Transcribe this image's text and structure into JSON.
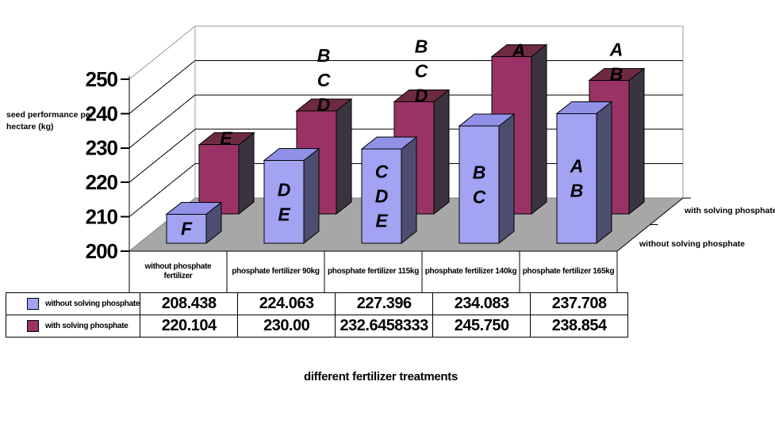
{
  "chart": {
    "y_axis_title_line1": "seed performance per",
    "y_axis_title_line2": "hectare (kg)",
    "x_axis_title": "different fertilizer treatments",
    "series_axis": {
      "back_label": "with solving phosphate",
      "front_label": "without solving phosphate"
    }
  },
  "chart_data": {
    "type": "bar",
    "projection": "3d-column",
    "title": "",
    "xlabel": "different fertilizer treatments",
    "ylabel": "seed performance per hectare (kg)",
    "ylim": [
      200,
      250
    ],
    "y_ticks": [
      200,
      210,
      220,
      230,
      240,
      250
    ],
    "grid": true,
    "legend_position": "data-table-left-column",
    "categories": [
      "without phosphate fertilizer",
      "phosphate fertilizer 90kg",
      "phosphate fertilizer 115kg",
      "phosphate fertilizer 140kg",
      "phosphate fertilizer 165kg"
    ],
    "series": [
      {
        "name": "without solving phosphate",
        "values": [
          208.438,
          224.063,
          227.396,
          234.083,
          237.708
        ],
        "value_labels": [
          "208.438",
          "224.063",
          "227.396",
          "234.083",
          "237.708"
        ],
        "significance_letters": [
          [
            "F"
          ],
          [
            "D",
            "E"
          ],
          [
            "C",
            "D",
            "E"
          ],
          [
            "B",
            "C"
          ],
          [
            "A",
            "B"
          ]
        ],
        "color": "#a3a3f3"
      },
      {
        "name": "with solving phosphate",
        "values": [
          220.104,
          230.0,
          232.6458333,
          245.75,
          238.854
        ],
        "value_labels": [
          "220.104",
          "230.00",
          "232.6458333",
          "245.750",
          "238.854"
        ],
        "significance_letters": [
          [
            "E"
          ],
          [
            "B",
            "C",
            "D"
          ],
          [
            "B",
            "C",
            "D"
          ],
          [
            "A"
          ],
          [
            "A",
            "B"
          ]
        ],
        "color": "#993366"
      }
    ]
  },
  "colors": {
    "blue_front": "#a3a3f3",
    "blue_top": "#9191e8",
    "blue_side": "#4d4d70",
    "maroon_front": "#993366",
    "maroon_top": "#6e2a40",
    "maroon_side": "#3b3340",
    "floor": "#a7a7a7",
    "wall_edge": "#9a9a9a",
    "grid_line": "#000000"
  }
}
